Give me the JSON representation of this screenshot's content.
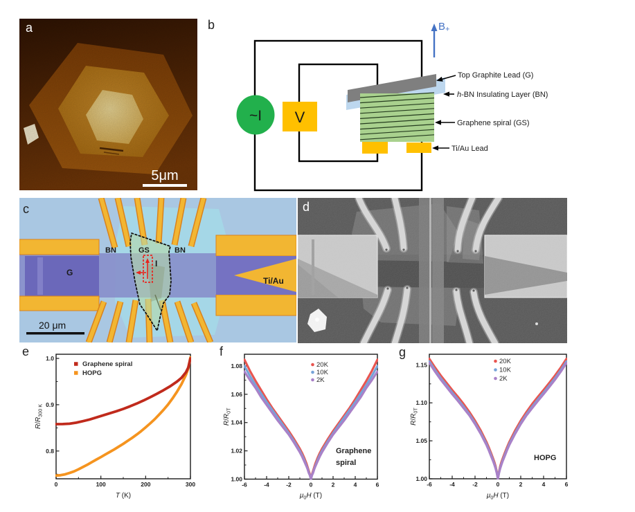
{
  "panels": {
    "a": {
      "letter": "a",
      "scale_bar": "5μm"
    },
    "b": {
      "letter": "b",
      "field": "B",
      "field_sub": "+",
      "current_source": "~I",
      "voltmeter": "V",
      "ann_top_lead": "Top Graphite Lead (G)",
      "ann_hbn_italic": "h",
      "ann_hbn_rest": "-BN Insulating Layer (BN)",
      "ann_spiral": "Graphene spiral (GS)",
      "ann_tiau": "Ti/Au Lead"
    },
    "c": {
      "letter": "c",
      "scale_bar": "20 μm",
      "lbl_g": "G",
      "lbl_bn_left": "BN",
      "lbl_gs": "GS",
      "lbl_bn_right": "BN",
      "lbl_i": "I",
      "lbl_tiau": "Ti/Au"
    },
    "d": {
      "letter": "d"
    },
    "e": {
      "letter": "e"
    },
    "f": {
      "letter": "f"
    },
    "g": {
      "letter": "g"
    }
  },
  "colors": {
    "accent_blue": "#4472c4",
    "wire": "#000000",
    "source_green": "#22b04c",
    "meter_orange": "#ffc000",
    "bn_blue": "#bdd7ee",
    "graphite_gray": "#7f7f7f",
    "spiral_green": "#a9d18e",
    "hatch_dark": "#243b1e",
    "afm": {
      "bg_top": "#2e1303",
      "bg_bottom": "#713708",
      "hex1a": "#7b3d07",
      "hex1b": "#9d570e",
      "hex2a": "#c4882a",
      "hex2b": "#a76a10",
      "hex3a": "#ead695",
      "hex3b": "#d3a94f",
      "speck": "#f2e8cc"
    },
    "optical": {
      "bg": "#a9c7e2",
      "cyan": "#a4d9e8",
      "strip": "#868dc9",
      "graphite": "#6b68ba",
      "gold": "#f2b632",
      "gold_edge": "#d9821d",
      "wedge": "#7572c2",
      "flake": "#b5d8a8",
      "red": "#e8251f",
      "ink": "#111111"
    },
    "sem": {
      "bg": "#4f4f4f",
      "band": "#454545",
      "pad": "#c6c6c6",
      "pad_dark": "#8e8e8e",
      "finger": "#d4d4d4",
      "overlay": "#969696",
      "blob": "#f4f4f4"
    }
  },
  "chart_data": [
    {
      "id": "e",
      "type": "line",
      "xlabel_parts": [
        {
          "t": "T",
          "i": 1
        },
        {
          "t": " (K)"
        }
      ],
      "ylabel_parts": [
        {
          "t": "R",
          "i": 1
        },
        {
          "t": "/"
        },
        {
          "t": "R",
          "i": 1
        },
        {
          "t": "300 K",
          "s": 1
        }
      ],
      "xlim": [
        0,
        300
      ],
      "ylim": [
        0.74,
        1.009
      ],
      "xticks": {
        "values": [
          0,
          100,
          200,
          300
        ],
        "labels": [
          "0",
          "100",
          "200",
          "300"
        ]
      },
      "yticks": {
        "values": [
          0.8,
          0.9,
          1.0
        ],
        "labels": [
          "0.8",
          "0.9",
          "1.0"
        ]
      },
      "xminor": [
        50,
        150,
        250
      ],
      "yminor": [
        0.75,
        0.85,
        0.95
      ],
      "legend": [
        {
          "label": "Graphene spiral",
          "color": "#c02a1c",
          "marker": "square"
        },
        {
          "label": "HOPG",
          "color": "#f5941f",
          "marker": "square"
        }
      ],
      "annotation_lines": [],
      "series": [
        {
          "name": "HOPG",
          "color": "#f5941f",
          "symmetric": false,
          "points": [
            [
              0,
              0.747
            ],
            [
              10,
              0.7478
            ],
            [
              20,
              0.7495
            ],
            [
              30,
              0.7525
            ],
            [
              40,
              0.756
            ],
            [
              50,
              0.7605
            ],
            [
              60,
              0.7655
            ],
            [
              70,
              0.7705
            ],
            [
              80,
              0.776
            ],
            [
              90,
              0.7815
            ],
            [
              100,
              0.787
            ],
            [
              110,
              0.7925
            ],
            [
              120,
              0.798
            ],
            [
              130,
              0.8035
            ],
            [
              140,
              0.8095
            ],
            [
              150,
              0.8155
            ],
            [
              160,
              0.822
            ],
            [
              170,
              0.8285
            ],
            [
              180,
              0.8355
            ],
            [
              190,
              0.843
            ],
            [
              200,
              0.851
            ],
            [
              210,
              0.8595
            ],
            [
              220,
              0.8685
            ],
            [
              230,
              0.8785
            ],
            [
              240,
              0.889
            ],
            [
              250,
              0.9005
            ],
            [
              260,
              0.9135
            ],
            [
              270,
              0.928
            ],
            [
              280,
              0.9445
            ],
            [
              290,
              0.9645
            ],
            [
              295,
              0.978
            ],
            [
              300,
              1.002
            ]
          ]
        },
        {
          "name": "Graphene spiral",
          "color": "#c02a1c",
          "symmetric": false,
          "points": [
            [
              0,
              0.858
            ],
            [
              15,
              0.8582
            ],
            [
              30,
              0.859
            ],
            [
              45,
              0.8612
            ],
            [
              60,
              0.8645
            ],
            [
              75,
              0.868
            ],
            [
              90,
              0.8725
            ],
            [
              105,
              0.877
            ],
            [
              120,
              0.8815
            ],
            [
              135,
              0.886
            ],
            [
              150,
              0.891
            ],
            [
              165,
              0.8965
            ],
            [
              180,
              0.9025
            ],
            [
              195,
              0.909
            ],
            [
              210,
              0.916
            ],
            [
              225,
              0.9235
            ],
            [
              240,
              0.9315
            ],
            [
              255,
              0.94
            ],
            [
              270,
              0.95
            ],
            [
              280,
              0.958
            ],
            [
              290,
              0.97
            ],
            [
              295,
              0.98
            ],
            [
              300,
              1.0
            ]
          ]
        }
      ]
    },
    {
      "id": "f",
      "type": "line",
      "xlabel_parts": [
        {
          "t": "μ",
          "i": 1
        },
        {
          "t": "0",
          "s": 1
        },
        {
          "t": "H",
          "i": 1
        },
        {
          "t": " (T)"
        }
      ],
      "ylabel_parts": [
        {
          "t": "R",
          "i": 1
        },
        {
          "t": "/"
        },
        {
          "t": "R",
          "i": 1
        },
        {
          "t": "0T",
          "s": 1
        }
      ],
      "xlim": [
        -6,
        6
      ],
      "ylim": [
        1.0,
        1.0883
      ],
      "xticks": {
        "values": [
          -6,
          -4,
          -2,
          0,
          2,
          4,
          6
        ],
        "labels": [
          "-6",
          "-4",
          "-2",
          "0",
          "2",
          "4",
          "6"
        ]
      },
      "yticks": {
        "values": [
          1.0,
          1.02,
          1.04,
          1.06,
          1.08
        ],
        "labels": [
          "1.00",
          "1.02",
          "1.04",
          "1.06",
          "1.08"
        ]
      },
      "xminor": [
        -5,
        -3,
        -1,
        1,
        3,
        5
      ],
      "yminor": [
        1.01,
        1.03,
        1.05,
        1.07
      ],
      "legend": [
        {
          "label": "20K",
          "color": "#e85550",
          "marker": "circle"
        },
        {
          "label": "10K",
          "color": "#76a3d8",
          "marker": "circle"
        },
        {
          "label": "2K",
          "color": "#a981c8",
          "marker": "circle"
        }
      ],
      "annotation_lines": [
        "Graphene",
        "spiral"
      ],
      "series": [
        {
          "name": "20K",
          "color": "#e85550",
          "symmetric": true,
          "points": [
            [
              0,
              1.0
            ],
            [
              0.1,
              1.0035
            ],
            [
              0.2,
              1.006
            ],
            [
              0.3,
              1.0085
            ],
            [
              0.4,
              1.011
            ],
            [
              0.6,
              1.015
            ],
            [
              0.8,
              1.0185
            ],
            [
              1,
              1.0215
            ],
            [
              1.5,
              1.028
            ],
            [
              2,
              1.034
            ],
            [
              2.5,
              1.0395
            ],
            [
              3,
              1.045
            ],
            [
              3.5,
              1.0505
            ],
            [
              4,
              1.0565
            ],
            [
              4.5,
              1.063
            ],
            [
              5,
              1.0695
            ],
            [
              5.5,
              1.0765
            ],
            [
              6,
              1.0845
            ]
          ]
        },
        {
          "name": "10K",
          "color": "#76a3d8",
          "symmetric": true,
          "points": [
            [
              0,
              1.0
            ],
            [
              0.1,
              1.003
            ],
            [
              0.2,
              1.005
            ],
            [
              0.3,
              1.0075
            ],
            [
              0.4,
              1.0095
            ],
            [
              0.6,
              1.0135
            ],
            [
              0.8,
              1.017
            ],
            [
              1,
              1.02
            ],
            [
              1.5,
              1.0265
            ],
            [
              2,
              1.0325
            ],
            [
              2.5,
              1.038
            ],
            [
              3,
              1.0435
            ],
            [
              3.5,
              1.049
            ],
            [
              4,
              1.0545
            ],
            [
              4.5,
              1.0605
            ],
            [
              5,
              1.0665
            ],
            [
              5.5,
              1.073
            ],
            [
              6,
              1.08
            ]
          ]
        },
        {
          "name": "2K",
          "color": "#a981c8",
          "symmetric": true,
          "points": [
            [
              0,
              1.0
            ],
            [
              0.1,
              1.0028
            ],
            [
              0.2,
              1.0045
            ],
            [
              0.3,
              1.007
            ],
            [
              0.4,
              1.009
            ],
            [
              0.6,
              1.0125
            ],
            [
              0.8,
              1.016
            ],
            [
              1,
              1.019
            ],
            [
              1.5,
              1.0255
            ],
            [
              2,
              1.0315
            ],
            [
              2.5,
              1.0365
            ],
            [
              3,
              1.0415
            ],
            [
              3.5,
              1.047
            ],
            [
              4,
              1.0525
            ],
            [
              4.5,
              1.058
            ],
            [
              5,
              1.0645
            ],
            [
              5.5,
              1.07
            ],
            [
              6,
              1.076
            ]
          ]
        }
      ]
    },
    {
      "id": "g",
      "type": "line",
      "xlabel_parts": [
        {
          "t": "μ",
          "i": 1
        },
        {
          "t": "0",
          "s": 1
        },
        {
          "t": "H",
          "i": 1
        },
        {
          "t": " (T)"
        }
      ],
      "ylabel_parts": [
        {
          "t": "R",
          "i": 1
        },
        {
          "t": "/"
        },
        {
          "t": "R",
          "i": 1
        },
        {
          "t": "0T",
          "s": 1
        }
      ],
      "xlim": [
        -6,
        6
      ],
      "ylim": [
        1.0,
        1.164
      ],
      "xticks": {
        "values": [
          -6,
          -4,
          -2,
          0,
          2,
          4,
          6
        ],
        "labels": [
          "-6",
          "-4",
          "-2",
          "0",
          "2",
          "4",
          "6"
        ]
      },
      "yticks": {
        "values": [
          1.0,
          1.05,
          1.1,
          1.15
        ],
        "labels": [
          "1.00",
          "1.05",
          "1.10",
          "1.15"
        ]
      },
      "xminor": [
        -5,
        -3,
        -1,
        1,
        3,
        5
      ],
      "yminor": [
        1.025,
        1.075,
        1.125
      ],
      "legend": [
        {
          "label": "20K",
          "color": "#e85550",
          "marker": "circle"
        },
        {
          "label": "10K",
          "color": "#76a3d8",
          "marker": "circle"
        },
        {
          "label": "2K",
          "color": "#a981c8",
          "marker": "circle"
        }
      ],
      "annotation_lines": [
        "HOPG"
      ],
      "series": [
        {
          "name": "20K",
          "color": "#e85550",
          "symmetric": true,
          "points": [
            [
              0,
              1.0
            ],
            [
              0.1,
              1.009
            ],
            [
              0.2,
              1.0165
            ],
            [
              0.3,
              1.0215
            ],
            [
              0.4,
              1.026
            ],
            [
              0.6,
              1.034
            ],
            [
              0.8,
              1.0415
            ],
            [
              1,
              1.0485
            ],
            [
              1.5,
              1.0635
            ],
            [
              2,
              1.0765
            ],
            [
              2.5,
              1.088
            ],
            [
              3,
              1.0985
            ],
            [
              3.5,
              1.108
            ],
            [
              4,
              1.117
            ],
            [
              4.5,
              1.1265
            ],
            [
              5,
              1.136
            ],
            [
              5.5,
              1.1465
            ],
            [
              6,
              1.158
            ]
          ]
        },
        {
          "name": "10K",
          "color": "#76a3d8",
          "symmetric": true,
          "points": [
            [
              0,
              1.0
            ],
            [
              0.1,
              1.008
            ],
            [
              0.2,
              1.0145
            ],
            [
              0.3,
              1.019
            ],
            [
              0.4,
              1.0235
            ],
            [
              0.6,
              1.0315
            ],
            [
              0.8,
              1.039
            ],
            [
              1,
              1.046
            ],
            [
              1.5,
              1.0605
            ],
            [
              2,
              1.0735
            ],
            [
              2.5,
              1.085
            ],
            [
              3,
              1.095
            ],
            [
              3.5,
              1.1045
            ],
            [
              4,
              1.1135
            ],
            [
              4.5,
              1.123
            ],
            [
              5,
              1.1325
            ],
            [
              5.5,
              1.143
            ],
            [
              6,
              1.1545
            ]
          ]
        },
        {
          "name": "2K",
          "color": "#a981c8",
          "symmetric": true,
          "points": [
            [
              0,
              1.0
            ],
            [
              0.1,
              1.0075
            ],
            [
              0.2,
              1.0135
            ],
            [
              0.3,
              1.018
            ],
            [
              0.4,
              1.0225
            ],
            [
              0.6,
              1.03
            ],
            [
              0.8,
              1.0375
            ],
            [
              1,
              1.0445
            ],
            [
              1.5,
              1.059
            ],
            [
              2,
              1.072
            ],
            [
              2.5,
              1.0835
            ],
            [
              3,
              1.093
            ],
            [
              3.5,
              1.1025
            ],
            [
              4,
              1.1115
            ],
            [
              4.5,
              1.121
            ],
            [
              5,
              1.1305
            ],
            [
              5.5,
              1.141
            ],
            [
              6,
              1.1525
            ]
          ]
        }
      ]
    }
  ]
}
